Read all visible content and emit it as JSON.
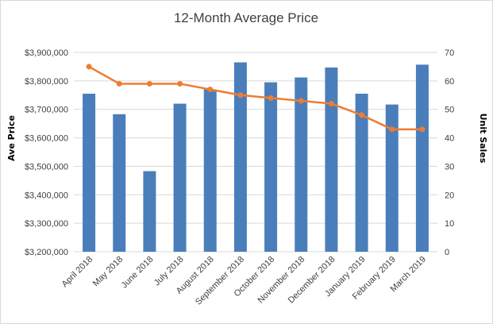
{
  "chart_data": {
    "type": "bar+line",
    "title": "12-Month Average Price",
    "categories": [
      "April 2018",
      "May 2018",
      "June 2018",
      "July 2018",
      "August 2018",
      "September 2018",
      "October 2018",
      "November 2018",
      "December 2018",
      "January 2019",
      "February 2019",
      "March 2019"
    ],
    "series": [
      {
        "type": "bar",
        "axis": "left",
        "color": "#4a7ebb",
        "values": [
          3755000,
          3683000,
          3483000,
          3720000,
          3770000,
          3865000,
          3795000,
          3812000,
          3847000,
          3755000,
          3717000,
          3857000
        ]
      },
      {
        "type": "line",
        "axis": "right",
        "color": "#ed7d31",
        "values": [
          65,
          59,
          59,
          59,
          57,
          55,
          54,
          53,
          52,
          48,
          43,
          43
        ]
      }
    ],
    "ylabel": "Ave Price",
    "y2label": "Unit Sales",
    "ylim": [
      3200000,
      3900000
    ],
    "y2lim": [
      0,
      70
    ],
    "yticks": [
      "$3,200,000",
      "$3,300,000",
      "$3,400,000",
      "$3,500,000",
      "$3,600,000",
      "$3,700,000",
      "$3,800,000",
      "$3,900,000"
    ],
    "y2ticks": [
      "0",
      "10",
      "20",
      "30",
      "40",
      "50",
      "60",
      "70"
    ],
    "grid": true,
    "legend": "none"
  }
}
